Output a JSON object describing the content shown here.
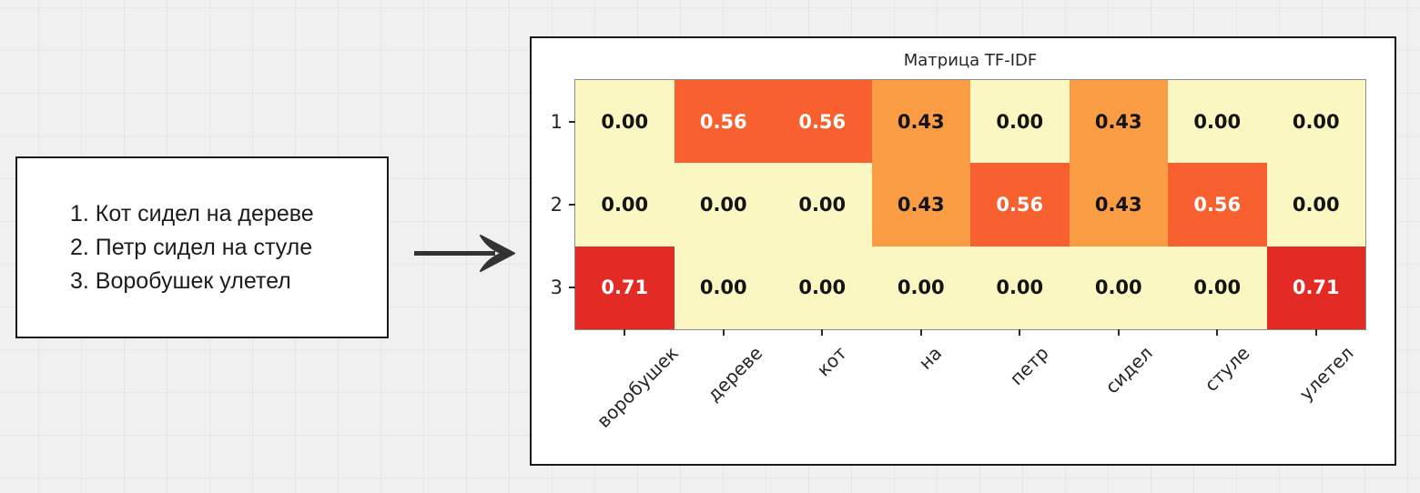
{
  "sentences_box": {
    "lines": [
      "1. Кот сидел на дереве",
      "2. Петр сидел на стуле",
      "3. Воробушек улетел"
    ]
  },
  "chart_data": {
    "type": "heatmap",
    "title": "Матрица TF-IDF",
    "x_tick_labels": [
      "воробушек",
      "дереве",
      "кот",
      "на",
      "петр",
      "сидел",
      "стуле",
      "улетел"
    ],
    "y_tick_labels": [
      "1",
      "2",
      "3"
    ],
    "values": [
      [
        0.0,
        0.56,
        0.56,
        0.43,
        0.0,
        0.43,
        0.0,
        0.0
      ],
      [
        0.0,
        0.0,
        0.0,
        0.43,
        0.56,
        0.43,
        0.56,
        0.0
      ],
      [
        0.71,
        0.0,
        0.0,
        0.0,
        0.0,
        0.0,
        0.0,
        0.71
      ]
    ],
    "value_decimals": 2,
    "colormap": "YlOrRd",
    "color_scale": {
      "0.00": "#FAF7C3",
      "0.43": "#FA9C44",
      "0.56": "#F9602F",
      "0.71": "#E32A25"
    },
    "white_text_threshold": 0.5,
    "value_text_color_low": "#141414",
    "value_text_color_high": "#ffffff",
    "grid": false,
    "legend": false
  },
  "style_colors": {
    "canvas_background": "#f0f0f1",
    "box_border": "#1a1a1a",
    "arrow": "#333333"
  }
}
